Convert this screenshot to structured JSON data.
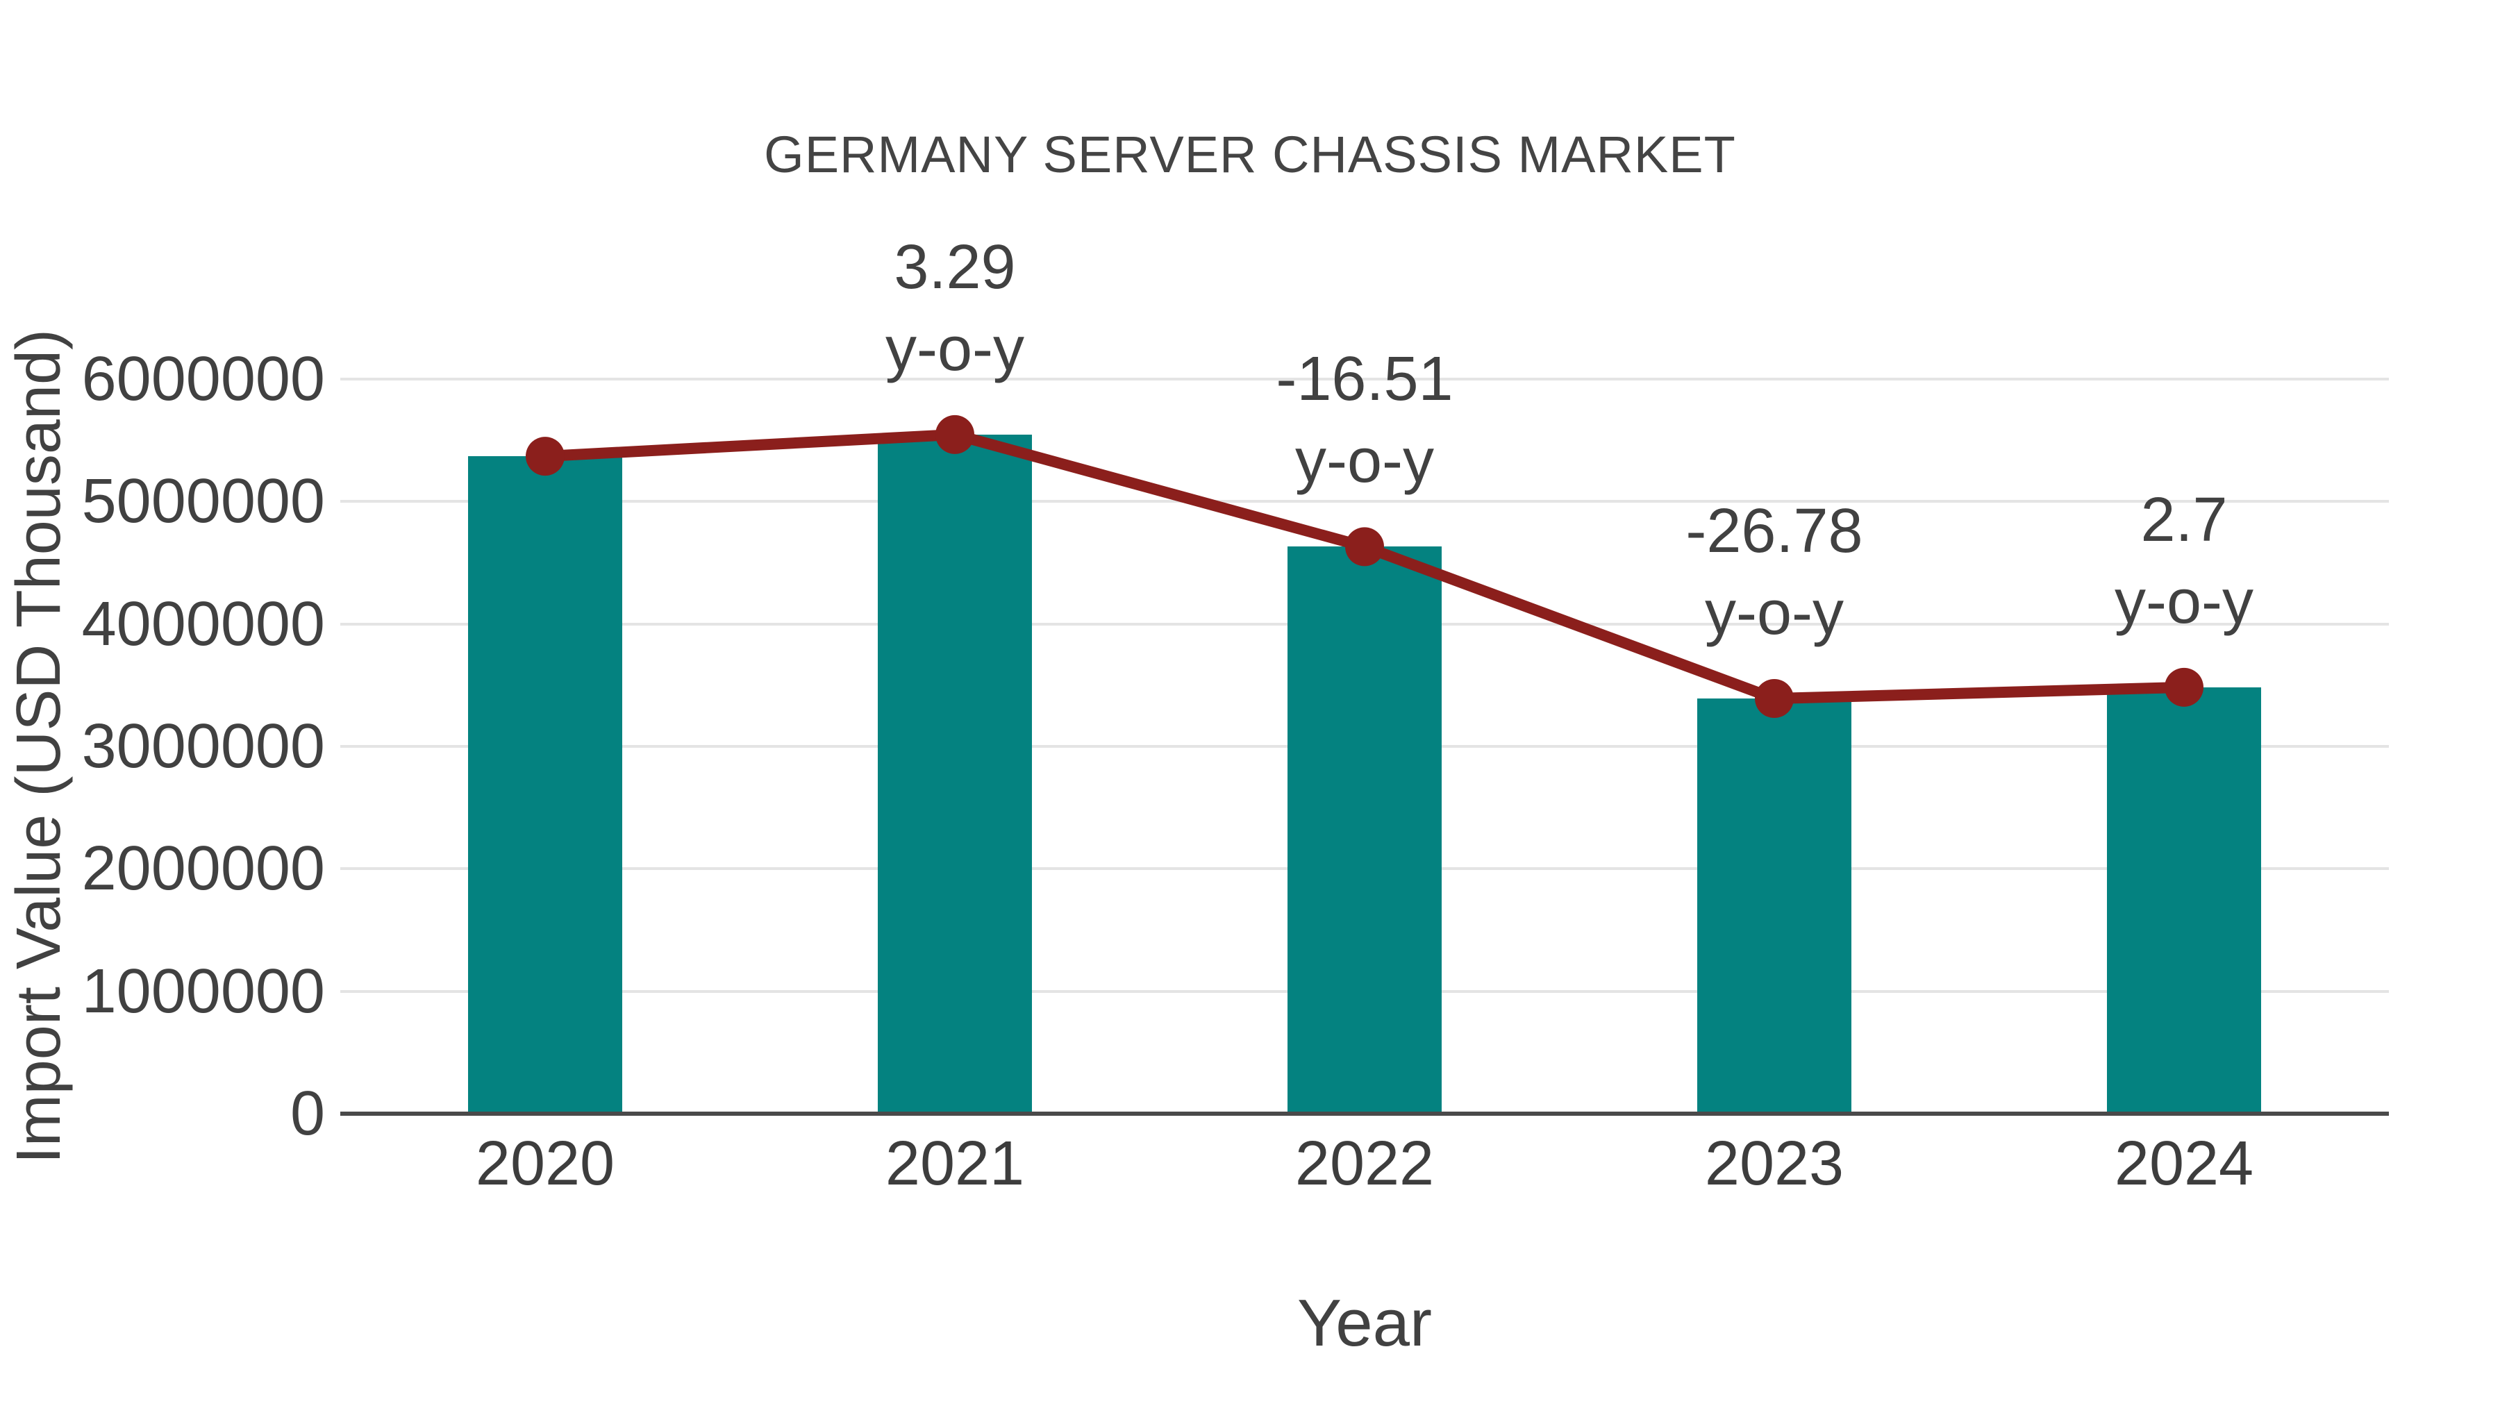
{
  "chart_data": {
    "type": "bar",
    "title": "GERMANY SERVER CHASSIS MARKET",
    "xlabel": "Year",
    "ylabel": "Import Value (USD Thousand)",
    "categories": [
      "2020",
      "2021",
      "2022",
      "2023",
      "2024"
    ],
    "series": [
      {
        "name": "Import Value (USD Thousand)",
        "type": "bar",
        "color": "#048280",
        "values": [
          5370000,
          5547000,
          4631000,
          3391000,
          3483000
        ]
      },
      {
        "name": "y-o-y change (%)",
        "type": "line",
        "color": "#8b1f1c",
        "plotted_at": "bar_tops",
        "values": [
          null,
          3.29,
          -16.51,
          -26.78,
          2.7
        ]
      }
    ],
    "annotations": [
      {
        "category": "2021",
        "lines": [
          "3.29",
          "y-o-y"
        ]
      },
      {
        "category": "2022",
        "lines": [
          "-16.51",
          "y-o-y"
        ]
      },
      {
        "category": "2023",
        "lines": [
          "-26.78",
          "y-o-y"
        ]
      },
      {
        "category": "2024",
        "lines": [
          "2.7",
          "y-o-y"
        ]
      }
    ],
    "yticks": [
      "0",
      "1000000",
      "2000000",
      "3000000",
      "4000000",
      "5000000",
      "6000000"
    ],
    "ytick_values": [
      0,
      1000000,
      2000000,
      3000000,
      4000000,
      5000000,
      6000000
    ],
    "ylim": [
      0,
      6000000
    ],
    "grid": "horizontal",
    "legend_position": "none",
    "colors": {
      "background": "#ffffff",
      "grid": "#e4e4e4",
      "axis": "#4a4a4a",
      "text": "#414141",
      "bar": "#048280",
      "line": "#8b1f1c"
    }
  }
}
